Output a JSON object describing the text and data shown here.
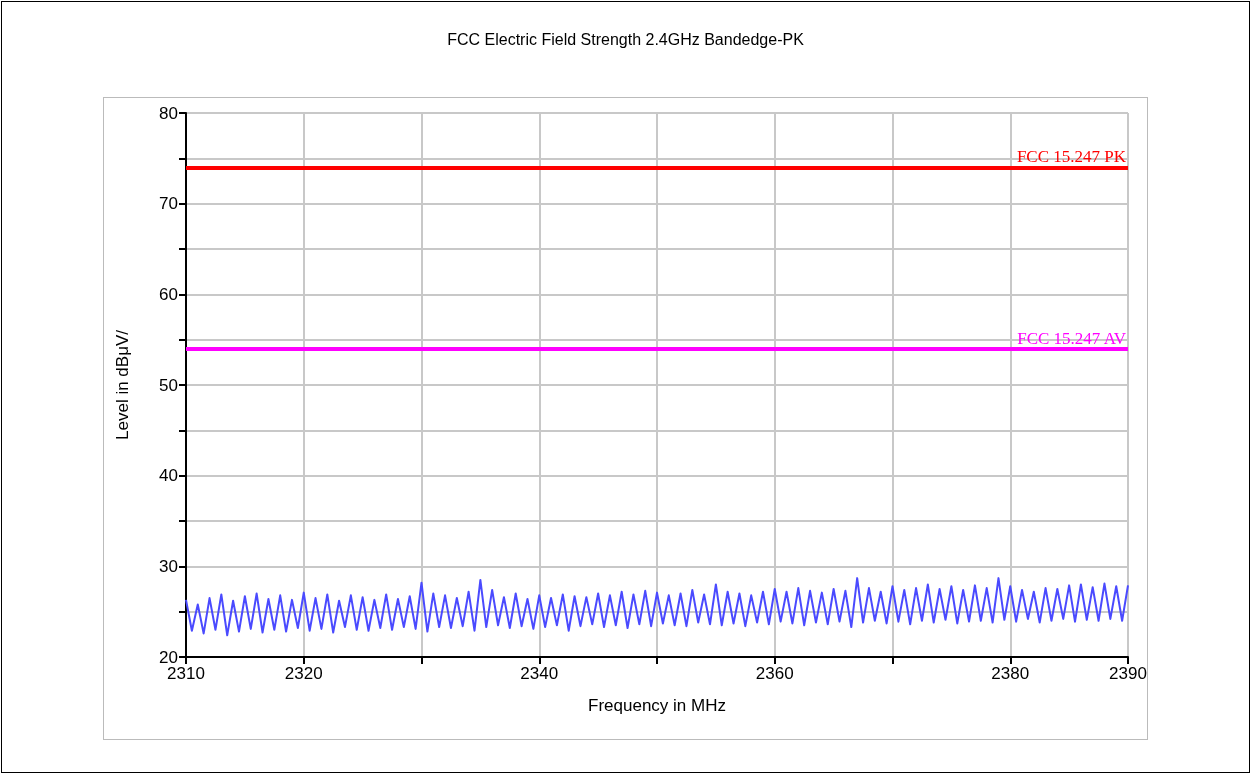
{
  "chart_data": {
    "type": "line",
    "title": "FCC Electric Field Strength 2.4GHz Bandedge-PK",
    "xlabel": "Frequency in MHz",
    "ylabel": "Level in dBμV/",
    "xlim": [
      2310,
      2390
    ],
    "xticks": [
      2310,
      2320,
      {
        "value": 2330,
        "label": null
      },
      2340,
      {
        "value": 2350,
        "label": null
      },
      2360,
      {
        "value": 2370,
        "label": null
      },
      2380,
      2390
    ],
    "ylim": [
      20,
      80
    ],
    "yticks": [
      20,
      {
        "value": 25,
        "label": null
      },
      30,
      {
        "value": 35,
        "label": null
      },
      40,
      {
        "value": 45,
        "label": null
      },
      50,
      {
        "value": 55,
        "label": null
      },
      60,
      {
        "value": 65,
        "label": null
      },
      70,
      {
        "value": 75,
        "label": null
      },
      80
    ],
    "grid": true,
    "marker": "none",
    "line_style": "solid",
    "ref_lines": [
      {
        "axis": "y",
        "value": 74,
        "label": "FCC 15.247 PK",
        "color": "#ff0000",
        "line_style": "solid"
      },
      {
        "axis": "y",
        "value": 54,
        "label": "FCC 15.247 AV",
        "color": "#ff00ff",
        "line_style": "solid"
      }
    ],
    "series": [
      {
        "color": "#4a4aff",
        "x": [
          2310,
          2310.5,
          2311,
          2311.5,
          2312,
          2312.5,
          2313,
          2313.5,
          2314,
          2314.5,
          2315,
          2315.5,
          2316,
          2316.5,
          2317,
          2317.5,
          2318,
          2318.5,
          2319,
          2319.5,
          2320,
          2320.5,
          2321,
          2321.5,
          2322,
          2322.5,
          2323,
          2323.5,
          2324,
          2324.5,
          2325,
          2325.5,
          2326,
          2326.5,
          2327,
          2327.5,
          2328,
          2328.5,
          2329,
          2329.5,
          2330,
          2330.5,
          2331,
          2331.5,
          2332,
          2332.5,
          2333,
          2333.5,
          2334,
          2334.5,
          2335,
          2335.5,
          2336,
          2336.5,
          2337,
          2337.5,
          2338,
          2338.5,
          2339,
          2339.5,
          2340,
          2340.5,
          2341,
          2341.5,
          2342,
          2342.5,
          2343,
          2343.5,
          2344,
          2344.5,
          2345,
          2345.5,
          2346,
          2346.5,
          2347,
          2347.5,
          2348,
          2348.5,
          2349,
          2349.5,
          2350,
          2350.5,
          2351,
          2351.5,
          2352,
          2352.5,
          2353,
          2353.5,
          2354,
          2354.5,
          2355,
          2355.5,
          2356,
          2356.5,
          2357,
          2357.5,
          2358,
          2358.5,
          2359,
          2359.5,
          2360,
          2360.5,
          2361,
          2361.5,
          2362,
          2362.5,
          2363,
          2363.5,
          2364,
          2364.5,
          2365,
          2365.5,
          2366,
          2366.5,
          2367,
          2367.5,
          2368,
          2368.5,
          2369,
          2369.5,
          2370,
          2370.5,
          2371,
          2371.5,
          2372,
          2372.5,
          2373,
          2373.5,
          2374,
          2374.5,
          2375,
          2375.5,
          2376,
          2376.5,
          2377,
          2377.5,
          2378,
          2378.5,
          2379,
          2379.5,
          2380,
          2380.5,
          2381,
          2381.5,
          2382,
          2382.5,
          2383,
          2383.5,
          2384,
          2384.5,
          2385,
          2385.5,
          2386,
          2386.5,
          2387,
          2387.5,
          2388,
          2388.5,
          2389,
          2389.5,
          2390
        ],
        "values": [
          26.3,
          22.9,
          25.8,
          22.6,
          26.5,
          23.0,
          26.9,
          22.4,
          26.2,
          22.8,
          26.7,
          23.1,
          27.0,
          22.7,
          26.4,
          23.0,
          26.8,
          22.8,
          26.3,
          23.2,
          27.1,
          22.9,
          26.5,
          23.1,
          26.9,
          22.7,
          26.2,
          23.3,
          26.8,
          23.0,
          26.6,
          22.9,
          26.3,
          23.2,
          26.9,
          23.0,
          26.4,
          23.3,
          26.7,
          23.1,
          28.2,
          22.8,
          27.0,
          23.3,
          26.8,
          23.2,
          26.5,
          23.4,
          27.2,
          22.9,
          28.5,
          23.3,
          27.4,
          23.5,
          26.6,
          23.2,
          27.0,
          23.4,
          26.4,
          23.1,
          26.8,
          23.3,
          26.5,
          23.5,
          26.9,
          22.9,
          26.7,
          23.4,
          26.6,
          23.6,
          27.0,
          23.3,
          26.8,
          23.5,
          27.2,
          23.2,
          26.9,
          23.6,
          27.3,
          23.4,
          27.1,
          23.7,
          26.8,
          23.5,
          27.0,
          23.4,
          27.4,
          23.8,
          26.9,
          23.6,
          28.0,
          23.5,
          27.2,
          23.7,
          27.0,
          23.4,
          26.8,
          23.8,
          27.2,
          23.6,
          27.5,
          23.9,
          27.2,
          23.7,
          27.6,
          23.5,
          27.3,
          23.8,
          27.1,
          23.6,
          27.5,
          23.9,
          27.3,
          23.3,
          28.7,
          23.8,
          27.6,
          24.0,
          27.2,
          23.7,
          27.8,
          23.9,
          27.4,
          23.6,
          27.6,
          24.0,
          28.0,
          23.8,
          27.5,
          24.1,
          27.8,
          23.7,
          27.4,
          23.9,
          27.9,
          24.0,
          27.6,
          23.8,
          28.7,
          24.1,
          27.8,
          23.9,
          27.4,
          24.2,
          27.2,
          23.8,
          27.6,
          24.0,
          27.5,
          24.2,
          27.9,
          23.9,
          28.0,
          24.1,
          27.7,
          24.0,
          28.1,
          24.2,
          27.8,
          24.0,
          27.9
        ]
      }
    ]
  }
}
